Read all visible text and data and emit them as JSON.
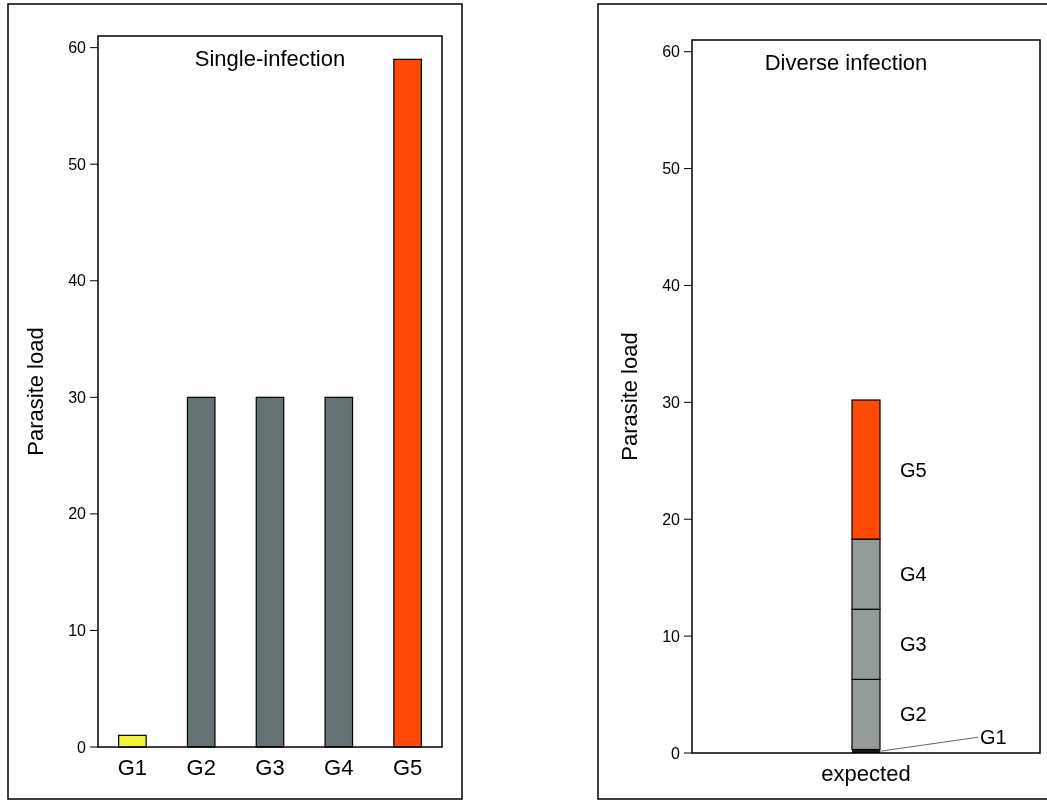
{
  "chart_data": [
    {
      "type": "bar",
      "title": "Single-infection",
      "ylabel": "Parasite load",
      "categories": [
        "G1",
        "G2",
        "G3",
        "G4",
        "G5"
      ],
      "values": [
        1,
        30,
        30,
        30,
        59
      ],
      "colors": [
        "#f2f23a",
        "#647273",
        "#647273",
        "#647273",
        "#ff4a05"
      ],
      "ylim": [
        0,
        61
      ],
      "yticks": [
        0,
        10,
        20,
        30,
        40,
        50,
        60
      ]
    },
    {
      "type": "bar",
      "title": "Diverse infection",
      "ylabel": "Parasite load",
      "categories": [
        "expected"
      ],
      "stacked": true,
      "ylim": [
        0,
        61
      ],
      "yticks": [
        0,
        10,
        20,
        30,
        40,
        50,
        60
      ],
      "series": [
        {
          "name": "G1",
          "color": "#1a1a1a",
          "values": [
            0.3
          ]
        },
        {
          "name": "G2",
          "color": "#949c9b",
          "values": [
            6
          ]
        },
        {
          "name": "G3",
          "color": "#949c9b",
          "values": [
            6
          ]
        },
        {
          "name": "G4",
          "color": "#949c9b",
          "values": [
            6
          ]
        },
        {
          "name": "G5",
          "color": "#ff4a05",
          "values": [
            11.9
          ]
        }
      ]
    }
  ]
}
